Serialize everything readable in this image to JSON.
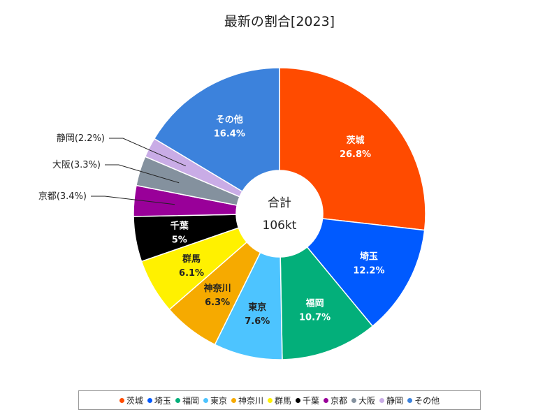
{
  "chart_data": {
    "type": "pie",
    "title": "最新の割合[2023]",
    "center": {
      "line1": "合計",
      "line2": "106kt"
    },
    "slices": [
      {
        "name": "茨城",
        "value": 26.8,
        "pct_label": "26.8%",
        "color": "#ff4b00",
        "text_color": "#ffffff"
      },
      {
        "name": "埼玉",
        "value": 12.2,
        "pct_label": "12.2%",
        "color": "#005aff",
        "text_color": "#ffffff"
      },
      {
        "name": "福岡",
        "value": 10.7,
        "pct_label": "10.7%",
        "color": "#03af7a",
        "text_color": "#ffffff"
      },
      {
        "name": "東京",
        "value": 7.6,
        "pct_label": "7.6%",
        "color": "#4dc4ff",
        "text_color": "#222222"
      },
      {
        "name": "神奈川",
        "value": 6.3,
        "pct_label": "6.3%",
        "color": "#f6aa00",
        "text_color": "#222222"
      },
      {
        "name": "群馬",
        "value": 6.1,
        "pct_label": "6.1%",
        "color": "#fff100",
        "text_color": "#222222"
      },
      {
        "name": "千葉",
        "value": 5,
        "pct_label": "5%",
        "color": "#000000",
        "text_color": "#ffffff"
      },
      {
        "name": "京都",
        "value": 3.4,
        "pct_label": "京都(3.4%)",
        "color": "#990099",
        "text_color": "#222222",
        "external": true
      },
      {
        "name": "大阪",
        "value": 3.3,
        "pct_label": "大阪(3.3%)",
        "color": "#84919e",
        "text_color": "#222222",
        "external": true
      },
      {
        "name": "静岡",
        "value": 2.2,
        "pct_label": "静岡(2.2%)",
        "color": "#c9ace6",
        "text_color": "#222222",
        "external": true
      },
      {
        "name": "その他",
        "value": 16.4,
        "pct_label": "16.4%",
        "color": "#3c82dc",
        "text_color": "#ffffff"
      }
    ]
  }
}
